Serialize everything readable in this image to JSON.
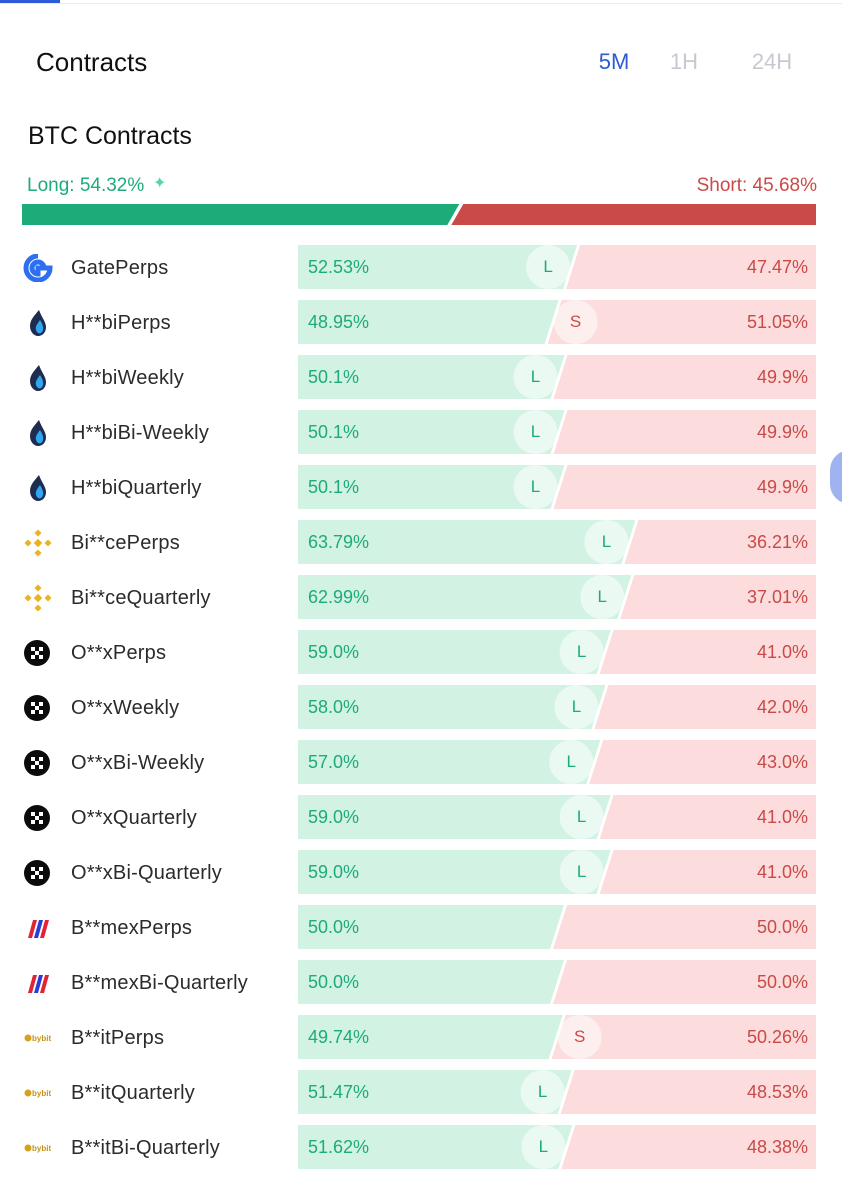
{
  "header": {
    "title": "Contracts",
    "tabs": [
      {
        "label": "5M",
        "active": true
      },
      {
        "label": "1H",
        "active": false
      },
      {
        "label": "24H",
        "active": false
      }
    ]
  },
  "section": {
    "title": "BTC Contracts",
    "long_label": "Long: 54.32%",
    "short_label": "Short: 45.68%",
    "long_ratio": 54.32,
    "sparkle_icon": "✦"
  },
  "colors": {
    "long": "#1dab79",
    "short": "#c94a47",
    "long_light": "#d2f2e4",
    "short_light": "#fcdcdc",
    "accent": "#2d5bd6"
  },
  "exchanges": [
    {
      "name": "GatePerps",
      "icon": "gate-icon",
      "long": "52.53%",
      "short": "47.47%",
      "long_value": 52.53,
      "tag": "L"
    },
    {
      "name": "H**biPerps",
      "icon": "huobi-icon",
      "long": "48.95%",
      "short": "51.05%",
      "long_value": 48.95,
      "tag": "S"
    },
    {
      "name": "H**biWeekly",
      "icon": "huobi-icon",
      "long": "50.1%",
      "short": "49.9%",
      "long_value": 50.1,
      "tag": "L"
    },
    {
      "name": "H**biBi-Weekly",
      "icon": "huobi-icon",
      "long": "50.1%",
      "short": "49.9%",
      "long_value": 50.1,
      "tag": "L"
    },
    {
      "name": "H**biQuarterly",
      "icon": "huobi-icon",
      "long": "50.1%",
      "short": "49.9%",
      "long_value": 50.1,
      "tag": "L"
    },
    {
      "name": "Bi**cePerps",
      "icon": "binance-icon",
      "long": "63.79%",
      "short": "36.21%",
      "long_value": 63.79,
      "tag": "L"
    },
    {
      "name": "Bi**ceQuarterly",
      "icon": "binance-icon",
      "long": "62.99%",
      "short": "37.01%",
      "long_value": 62.99,
      "tag": "L"
    },
    {
      "name": "O**xPerps",
      "icon": "okx-icon",
      "long": "59.0%",
      "short": "41.0%",
      "long_value": 59.0,
      "tag": "L"
    },
    {
      "name": "O**xWeekly",
      "icon": "okx-icon",
      "long": "58.0%",
      "short": "42.0%",
      "long_value": 58.0,
      "tag": "L"
    },
    {
      "name": "O**xBi-Weekly",
      "icon": "okx-icon",
      "long": "57.0%",
      "short": "43.0%",
      "long_value": 57.0,
      "tag": "L"
    },
    {
      "name": "O**xQuarterly",
      "icon": "okx-icon",
      "long": "59.0%",
      "short": "41.0%",
      "long_value": 59.0,
      "tag": "L"
    },
    {
      "name": "O**xBi-Quarterly",
      "icon": "okx-icon",
      "long": "59.0%",
      "short": "41.0%",
      "long_value": 59.0,
      "tag": "L"
    },
    {
      "name": "B**mexPerps",
      "icon": "bitmex-icon",
      "long": "50.0%",
      "short": "50.0%",
      "long_value": 50.0,
      "tag": ""
    },
    {
      "name": "B**mexBi-Quarterly",
      "icon": "bitmex-icon",
      "long": "50.0%",
      "short": "50.0%",
      "long_value": 50.0,
      "tag": ""
    },
    {
      "name": "B**itPerps",
      "icon": "bybit-icon",
      "long": "49.74%",
      "short": "50.26%",
      "long_value": 49.74,
      "tag": "S"
    },
    {
      "name": "B**itQuarterly",
      "icon": "bybit-icon",
      "long": "51.47%",
      "short": "48.53%",
      "long_value": 51.47,
      "tag": "L"
    },
    {
      "name": "B**itBi-Quarterly",
      "icon": "bybit-icon",
      "long": "51.62%",
      "short": "48.38%",
      "long_value": 51.62,
      "tag": "L"
    }
  ]
}
